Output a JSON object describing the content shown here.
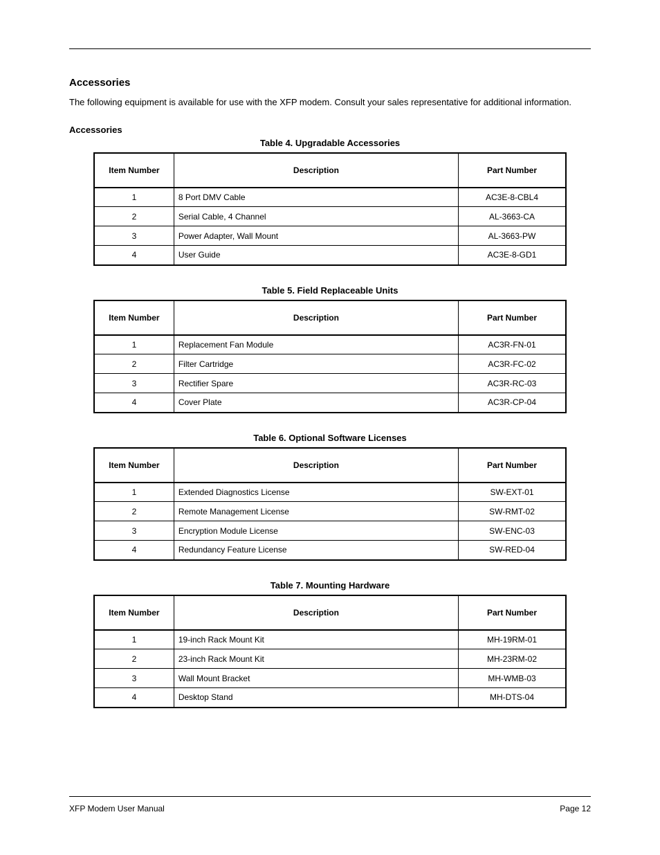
{
  "section_title": "Accessories",
  "intro": "The following equipment is available for use with the XFP modem. Consult your sales representative for additional information.",
  "accessories_label": "Accessories",
  "tables": [
    {
      "caption": "Table 4.  Upgradable Accessories",
      "columns": [
        "Item Number",
        "Description",
        "Part Number"
      ],
      "rows": [
        [
          "1",
          "8 Port DMV Cable",
          "AC3E-8-CBL4"
        ],
        [
          "2",
          "Serial Cable, 4 Channel",
          "AL-3663-CA"
        ],
        [
          "3",
          "Power Adapter, Wall Mount",
          "AL-3663-PW"
        ],
        [
          "4",
          "User Guide",
          "AC3E-8-GD1"
        ]
      ]
    },
    {
      "caption": "Table 5.  Field Replaceable Units",
      "columns": [
        "Item Number",
        "Description",
        "Part Number"
      ],
      "rows": [
        [
          "1",
          "Replacement Fan Module",
          "AC3R-FN-01"
        ],
        [
          "2",
          "Filter Cartridge",
          "AC3R-FC-02"
        ],
        [
          "3",
          "Rectifier Spare",
          "AC3R-RC-03"
        ],
        [
          "4",
          "Cover Plate",
          "AC3R-CP-04"
        ]
      ]
    },
    {
      "caption": "Table 6.  Optional Software Licenses",
      "columns": [
        "Item Number",
        "Description",
        "Part Number"
      ],
      "rows": [
        [
          "1",
          "Extended Diagnostics License",
          "SW-EXT-01"
        ],
        [
          "2",
          "Remote Management License",
          "SW-RMT-02"
        ],
        [
          "3",
          "Encryption Module License",
          "SW-ENC-03"
        ],
        [
          "4",
          "Redundancy Feature License",
          "SW-RED-04"
        ]
      ]
    },
    {
      "caption": "Table 7.  Mounting Hardware",
      "columns": [
        "Item Number",
        "Description",
        "Part Number"
      ],
      "rows": [
        [
          "1",
          "19-inch Rack Mount Kit",
          "MH-19RM-01"
        ],
        [
          "2",
          "23-inch Rack Mount Kit",
          "MH-23RM-02"
        ],
        [
          "3",
          "Wall Mount Bracket",
          "MH-WMB-03"
        ],
        [
          "4",
          "Desktop Stand",
          "MH-DTS-04"
        ]
      ]
    }
  ],
  "column_widths": [
    "115px",
    "410px",
    "155px"
  ],
  "footer": {
    "left": "XFP Modem User Manual",
    "right": "Page 12"
  },
  "colors": {
    "background": "#ffffff",
    "text": "#000000",
    "rule": "#000000"
  }
}
